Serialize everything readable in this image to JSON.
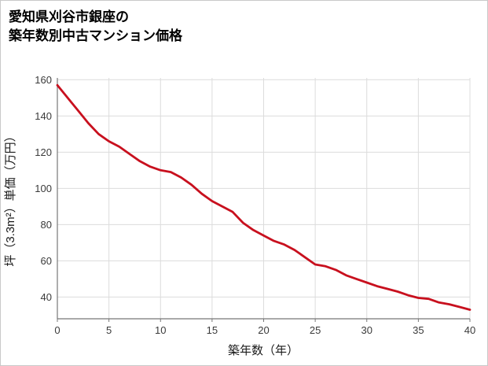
{
  "title": {
    "line1": "愛知県刈谷市銀座の",
    "line2": "築年数別中古マンション価格"
  },
  "chart_data": {
    "type": "line",
    "title": "愛知県刈谷市銀座の築年数別中古マンション価格",
    "xlabel": "築年数（年）",
    "ylabel": "坪（3.3m²）単価（万円）",
    "x": [
      0,
      1,
      2,
      3,
      4,
      5,
      6,
      7,
      8,
      9,
      10,
      11,
      12,
      13,
      14,
      15,
      16,
      17,
      18,
      19,
      20,
      21,
      22,
      23,
      24,
      25,
      26,
      27,
      28,
      29,
      30,
      31,
      32,
      33,
      34,
      35,
      36,
      37,
      38,
      39,
      40
    ],
    "series": [
      {
        "name": "坪単価",
        "values": [
          157,
          150,
          143,
          136,
          130,
          126,
          123,
          119,
          115,
          112,
          110,
          109,
          106,
          102,
          97,
          93,
          90,
          87,
          81,
          77,
          74,
          71,
          69,
          66,
          62,
          58,
          57,
          55,
          52,
          50,
          48,
          46,
          44.5,
          43,
          41,
          39.5,
          39,
          37,
          36,
          34.5,
          33
        ]
      }
    ],
    "xlim": [
      0,
      40
    ],
    "ylim": [
      28,
      161
    ],
    "xticks": [
      0,
      5,
      10,
      15,
      20,
      25,
      30,
      35,
      40
    ],
    "yticks": [
      40,
      60,
      80,
      100,
      120,
      140,
      160
    ],
    "grid": true,
    "legend": "none",
    "colors": {
      "line": "#c8101e",
      "grid": "#dcdcdc",
      "axis": "#777777",
      "text": "#3a3a3a"
    }
  }
}
